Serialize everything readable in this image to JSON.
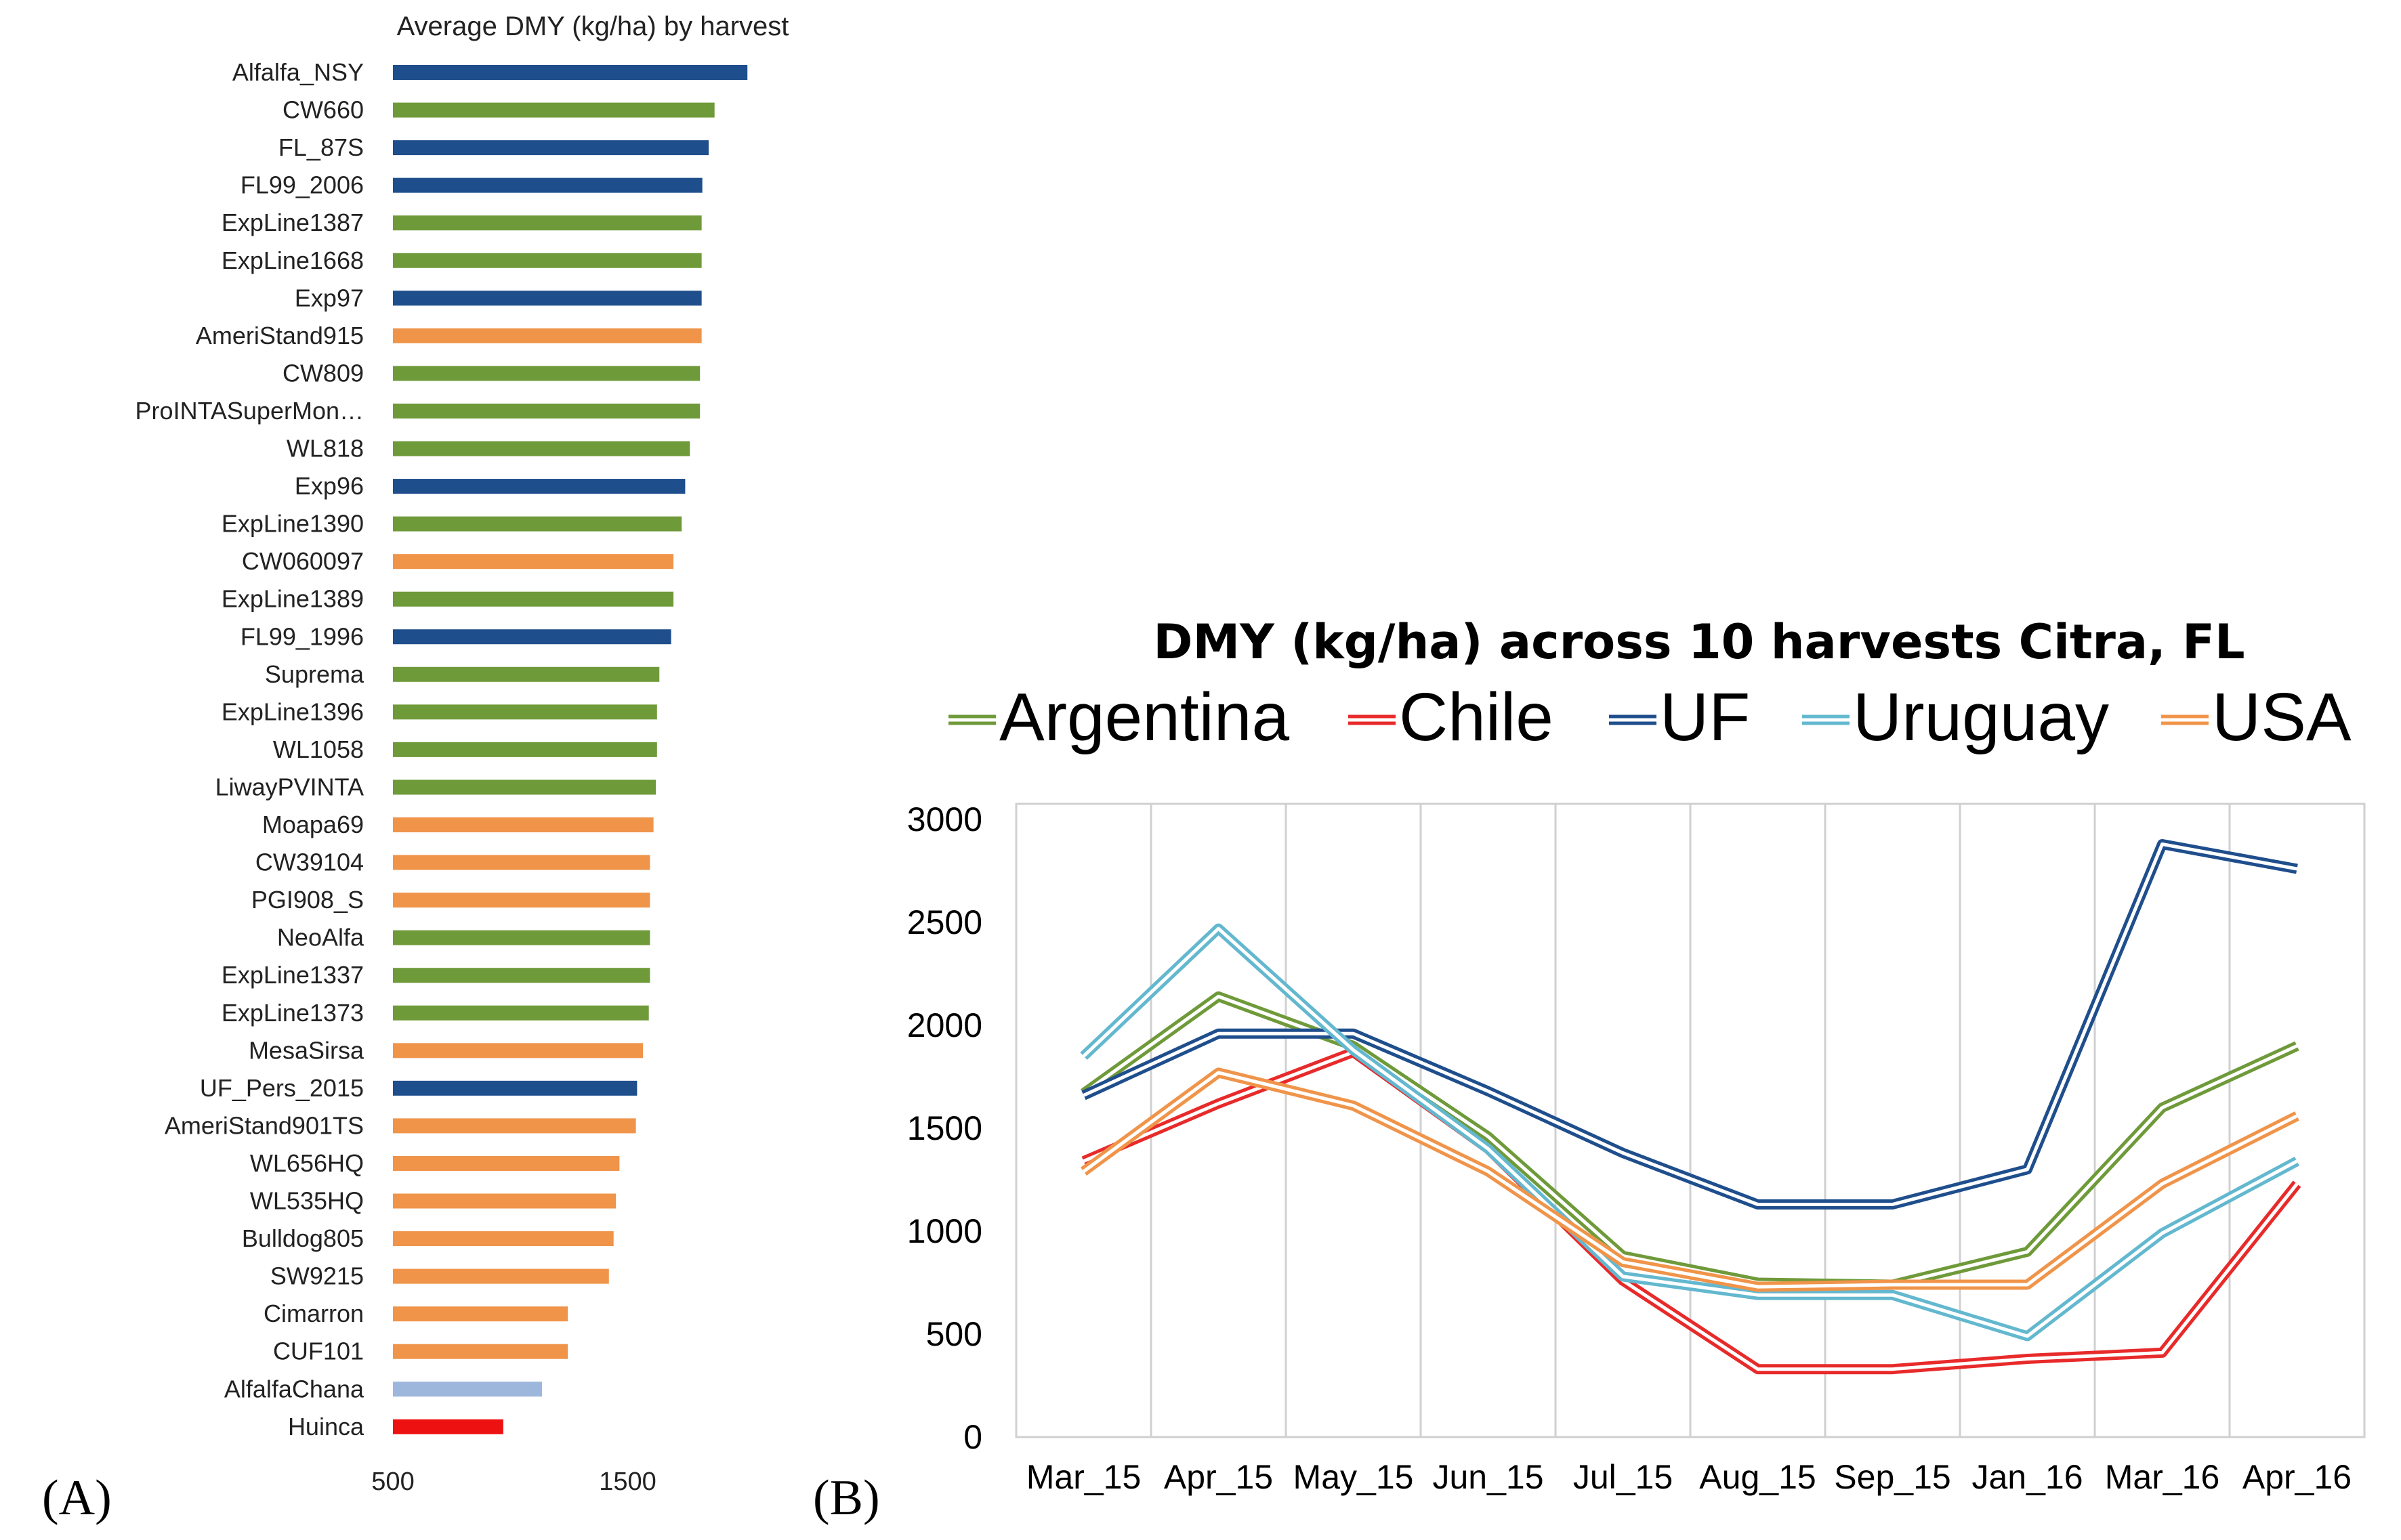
{
  "panels": {
    "a_label": "(A)",
    "b_label": "(B)"
  },
  "colors": {
    "UF": "#1f4e8c",
    "Argentina": "#6f9a3a",
    "USA": "#f0944a",
    "Chile": "#e82a2a",
    "Uruguay": "#63b8cf",
    "Chile_bar": "#ee1111",
    "lightblue_bar": "#9db6dc"
  },
  "chart_data": [
    {
      "type": "bar",
      "orientation": "horizontal",
      "title": "Average DMY (kg/ha) by harvest",
      "xlim": [
        500,
        2400
      ],
      "xticks": [
        500,
        1500
      ],
      "categories": [
        "Alfalfa_NSY",
        "CW660",
        "FL_87S",
        "FL99_2006",
        "ExpLine1387",
        "ExpLine1668",
        "Exp97",
        "AmeriStand915",
        "CW809",
        "ProINTASuperMon…",
        "WL818",
        "Exp96",
        "ExpLine1390",
        "CW060097",
        "ExpLine1389",
        "FL99_1996",
        "Suprema",
        "ExpLine1396",
        "WL1058",
        "LiwayPVINTA",
        "Moapa69",
        "CW39104",
        "PGI908_S",
        "NeoAlfa",
        "ExpLine1337",
        "ExpLine1373",
        "MesaSirsa",
        "UF_Pers_2015",
        "AmeriStand901TS",
        "WL656HQ",
        "WL535HQ",
        "Bulldog805",
        "SW9215",
        "Cimarron",
        "CUF101",
        "AlfalfaChana",
        "Huinca"
      ],
      "values": [
        2010,
        1870,
        1845,
        1818,
        1815,
        1815,
        1815,
        1815,
        1808,
        1808,
        1765,
        1745,
        1730,
        1695,
        1695,
        1685,
        1635,
        1625,
        1625,
        1620,
        1610,
        1595,
        1595,
        1595,
        1595,
        1590,
        1565,
        1540,
        1535,
        1465,
        1450,
        1440,
        1420,
        1245,
        1245,
        1135,
        970
      ],
      "groups": [
        "UF",
        "Argentina",
        "UF",
        "UF",
        "Argentina",
        "Argentina",
        "UF",
        "USA",
        "Argentina",
        "Argentina",
        "Argentina",
        "UF",
        "Argentina",
        "USA",
        "Argentina",
        "UF",
        "Argentina",
        "Argentina",
        "Argentina",
        "Argentina",
        "USA",
        "USA",
        "USA",
        "Argentina",
        "Argentina",
        "Argentina",
        "USA",
        "UF",
        "USA",
        "USA",
        "USA",
        "USA",
        "USA",
        "USA",
        "USA",
        "lightblue",
        "Chile"
      ]
    },
    {
      "type": "line",
      "title": "DMY (kg/ha) across 10 harvests Citra, FL",
      "x": [
        "Mar_15",
        "Apr_15",
        "May_15",
        "Jun_15",
        "Jul_15",
        "Aug_15",
        "Sep_15",
        "Jan_16",
        "Mar_16",
        "Apr_16"
      ],
      "ylim": [
        0,
        3000
      ],
      "yticks": [
        0,
        500,
        1000,
        1500,
        2000,
        2500,
        3000
      ],
      "grid": "vertical",
      "legend": "top",
      "series": [
        {
          "name": "Argentina",
          "values": [
            1670,
            2140,
            1900,
            1460,
            880,
            750,
            740,
            900,
            1600,
            1900
          ]
        },
        {
          "name": "Chile",
          "values": [
            1340,
            1620,
            1870,
            1400,
            760,
            330,
            330,
            380,
            410,
            1230
          ]
        },
        {
          "name": "UF",
          "values": [
            1660,
            1960,
            1960,
            1680,
            1380,
            1130,
            1130,
            1300,
            2880,
            2760
          ]
        },
        {
          "name": "Uruguay",
          "values": [
            1850,
            2470,
            1880,
            1400,
            780,
            690,
            690,
            490,
            990,
            1340
          ]
        },
        {
          "name": "USA",
          "values": [
            1290,
            1770,
            1610,
            1290,
            850,
            730,
            740,
            740,
            1230,
            1560
          ]
        }
      ]
    }
  ]
}
